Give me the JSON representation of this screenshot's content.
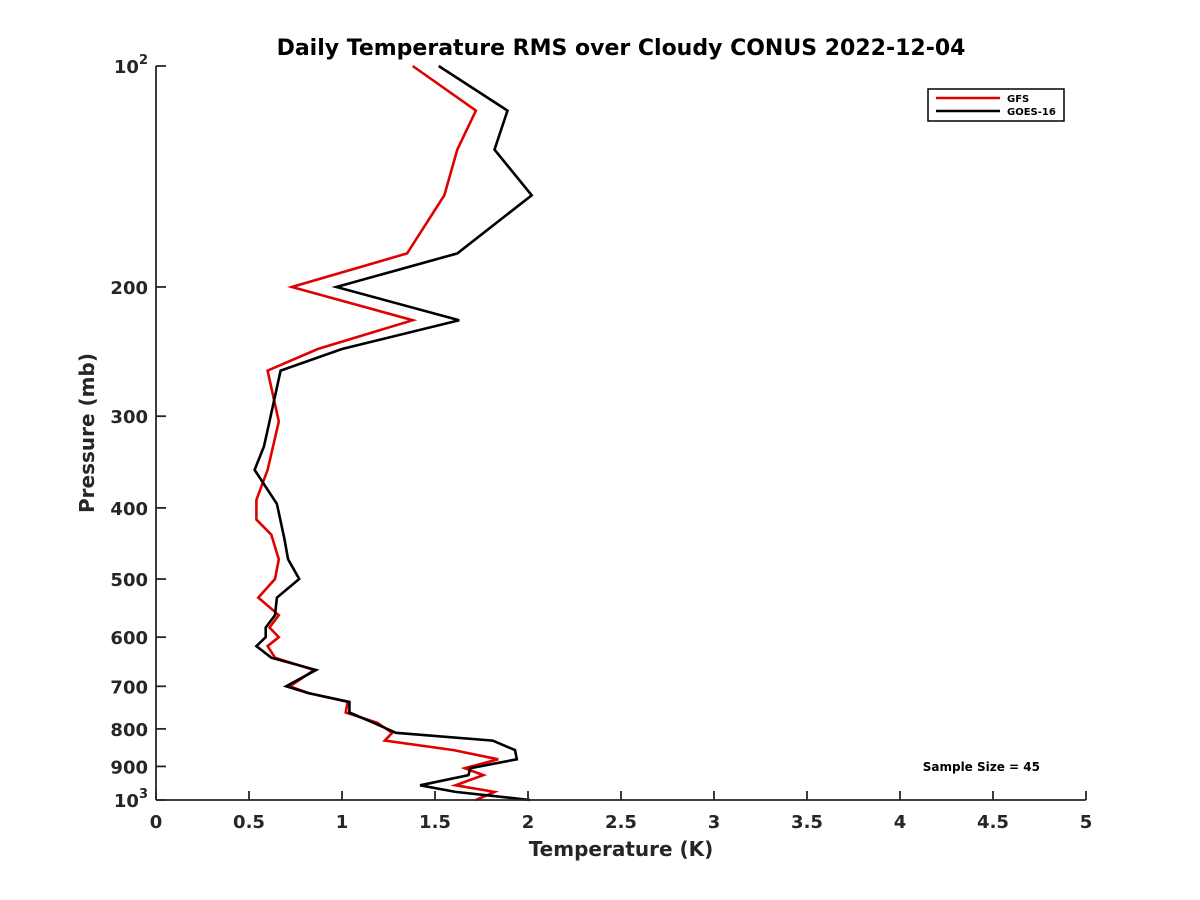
{
  "chart_data": {
    "type": "line",
    "title": "Daily Temperature RMS over Cloudy CONUS 2022-12-04",
    "xlabel": "Temperature (K)",
    "ylabel": "Pressure (mb)",
    "xlim": [
      0,
      5
    ],
    "ylim": [
      100,
      1000
    ],
    "y_scale": "log",
    "y_reversed": true,
    "x_ticks": [
      "0",
      "0.5",
      "1",
      "1.5",
      "2",
      "2.5",
      "3",
      "3.5",
      "4",
      "4.5",
      "5"
    ],
    "y_ticks": [
      {
        "value": 100,
        "base": "10",
        "exp": "2",
        "label": ""
      },
      {
        "value": 200,
        "label": "200"
      },
      {
        "value": 300,
        "label": "300"
      },
      {
        "value": 400,
        "label": "400"
      },
      {
        "value": 500,
        "label": "500"
      },
      {
        "value": 600,
        "label": "600"
      },
      {
        "value": 700,
        "label": "700"
      },
      {
        "value": 800,
        "label": "800"
      },
      {
        "value": 900,
        "label": "900"
      },
      {
        "value": 1000,
        "base": "10",
        "exp": "3",
        "label": ""
      }
    ],
    "legend_position": "top-right",
    "annotation": "Sample Size = 45",
    "series": [
      {
        "name": "GFS",
        "color": "#e00000",
        "points": [
          [
            1.38,
            100
          ],
          [
            1.72,
            115
          ],
          [
            1.62,
            130
          ],
          [
            1.55,
            150
          ],
          [
            1.35,
            180
          ],
          [
            0.73,
            200
          ],
          [
            1.38,
            222
          ],
          [
            0.87,
            243
          ],
          [
            0.6,
            260
          ],
          [
            0.66,
            305
          ],
          [
            0.6,
            355
          ],
          [
            0.54,
            390
          ],
          [
            0.54,
            415
          ],
          [
            0.62,
            435
          ],
          [
            0.66,
            470
          ],
          [
            0.64,
            500
          ],
          [
            0.55,
            530
          ],
          [
            0.66,
            560
          ],
          [
            0.61,
            582
          ],
          [
            0.66,
            600
          ],
          [
            0.6,
            617
          ],
          [
            0.64,
            640
          ],
          [
            0.85,
            665
          ],
          [
            0.72,
            700
          ],
          [
            0.82,
            715
          ],
          [
            1.03,
            735
          ],
          [
            1.02,
            760
          ],
          [
            1.19,
            785
          ],
          [
            1.27,
            810
          ],
          [
            1.23,
            830
          ],
          [
            1.6,
            855
          ],
          [
            1.84,
            880
          ],
          [
            1.66,
            905
          ],
          [
            1.76,
            925
          ],
          [
            1.61,
            955
          ],
          [
            1.82,
            975
          ],
          [
            1.72,
            1000
          ]
        ]
      },
      {
        "name": "GOES-16",
        "color": "#000000",
        "points": [
          [
            1.52,
            100
          ],
          [
            1.89,
            115
          ],
          [
            1.82,
            130
          ],
          [
            2.02,
            150
          ],
          [
            1.62,
            180
          ],
          [
            0.97,
            200
          ],
          [
            1.63,
            222
          ],
          [
            1.0,
            243
          ],
          [
            0.67,
            260
          ],
          [
            0.61,
            305
          ],
          [
            0.58,
            330
          ],
          [
            0.53,
            355
          ],
          [
            0.65,
            395
          ],
          [
            0.69,
            440
          ],
          [
            0.71,
            470
          ],
          [
            0.77,
            500
          ],
          [
            0.65,
            530
          ],
          [
            0.64,
            560
          ],
          [
            0.59,
            582
          ],
          [
            0.59,
            600
          ],
          [
            0.54,
            617
          ],
          [
            0.62,
            640
          ],
          [
            0.86,
            665
          ],
          [
            0.7,
            700
          ],
          [
            0.82,
            715
          ],
          [
            1.04,
            735
          ],
          [
            1.04,
            760
          ],
          [
            1.17,
            785
          ],
          [
            1.29,
            810
          ],
          [
            1.81,
            830
          ],
          [
            1.93,
            855
          ],
          [
            1.94,
            880
          ],
          [
            1.69,
            905
          ],
          [
            1.68,
            925
          ],
          [
            1.42,
            955
          ],
          [
            1.61,
            975
          ],
          [
            2.01,
            1000
          ]
        ]
      }
    ]
  }
}
